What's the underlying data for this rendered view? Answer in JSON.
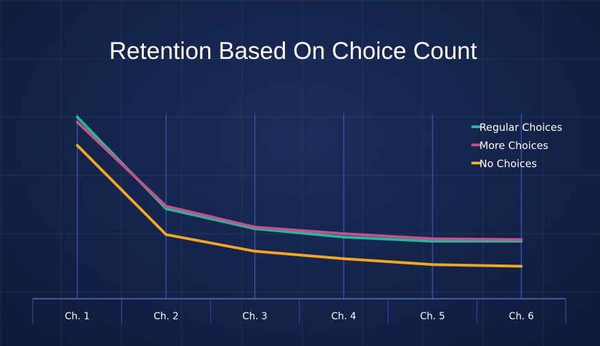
{
  "chart_data": {
    "type": "line",
    "title": "Retention Based On Choice Count",
    "categories": [
      "Ch. 1",
      "Ch. 2",
      "Ch. 3",
      "Ch. 4",
      "Ch. 5",
      "Ch. 6"
    ],
    "legend_position": "top-right",
    "grid": "vertical lines at categories",
    "series": [
      {
        "name": "Regular Choices",
        "color": "#25b79a",
        "values": [
          100,
          45,
          33,
          28,
          25.5,
          25.5
        ]
      },
      {
        "name": "More Choices",
        "color": "#c2528a",
        "values": [
          97,
          46.5,
          34,
          30,
          27,
          26.5
        ]
      },
      {
        "name": "No Choices",
        "color": "#f2a81d",
        "values": [
          83,
          29.5,
          19.5,
          15,
          11.5,
          10.5
        ]
      }
    ],
    "ylim": [
      -9,
      102
    ]
  }
}
